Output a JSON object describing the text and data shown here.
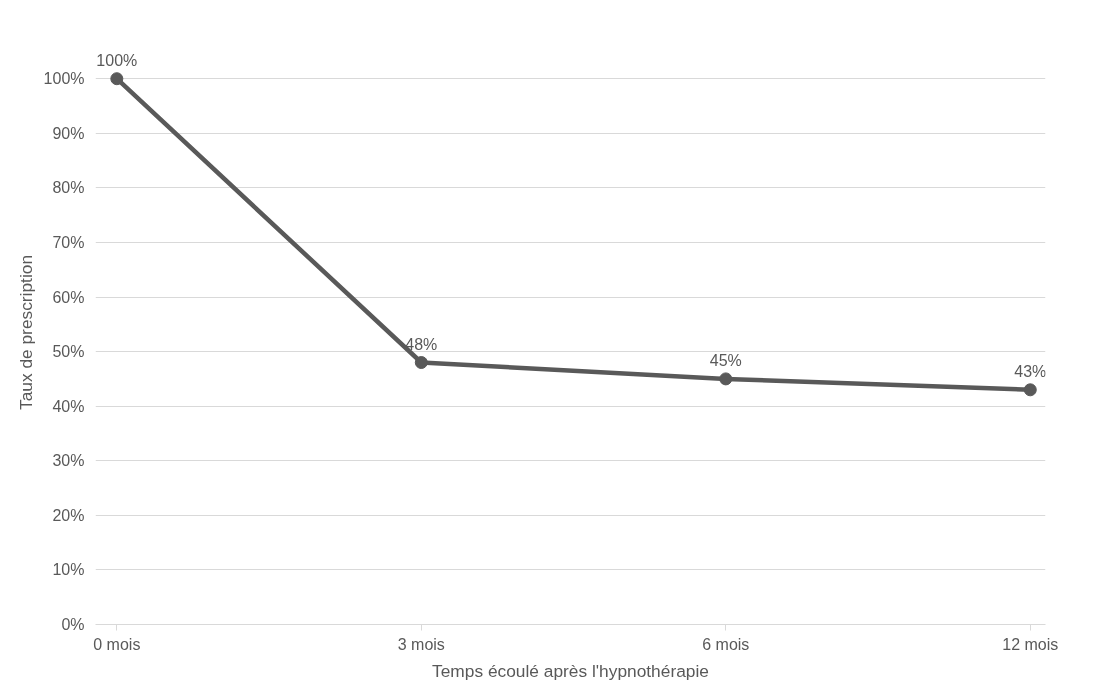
{
  "chart_data": {
    "type": "line",
    "xlabel": "Temps écoulé après l'hypnothérapie",
    "ylabel": "Taux de prescription",
    "categories": [
      "0 mois",
      "3 mois",
      "6 mois",
      "12 mois"
    ],
    "series": [
      {
        "color": "#595959",
        "values": [
          100,
          48,
          45,
          43
        ],
        "value_labels": [
          "100%",
          "48%",
          "45%",
          "43%"
        ]
      }
    ],
    "ylim": [
      0,
      100
    ],
    "yticks": [
      {
        "value": 0,
        "label": "0%"
      },
      {
        "value": 10,
        "label": "10%"
      },
      {
        "value": 20,
        "label": "20%"
      },
      {
        "value": 30,
        "label": "30%"
      },
      {
        "value": 40,
        "label": "40%"
      },
      {
        "value": 50,
        "label": "50%"
      },
      {
        "value": 60,
        "label": "60%"
      },
      {
        "value": 70,
        "label": "70%"
      },
      {
        "value": 80,
        "label": "80%"
      },
      {
        "value": 90,
        "label": "90%"
      },
      {
        "value": 100,
        "label": "100%"
      }
    ],
    "grid": "y",
    "marker": "circle",
    "line_style": "solid"
  }
}
